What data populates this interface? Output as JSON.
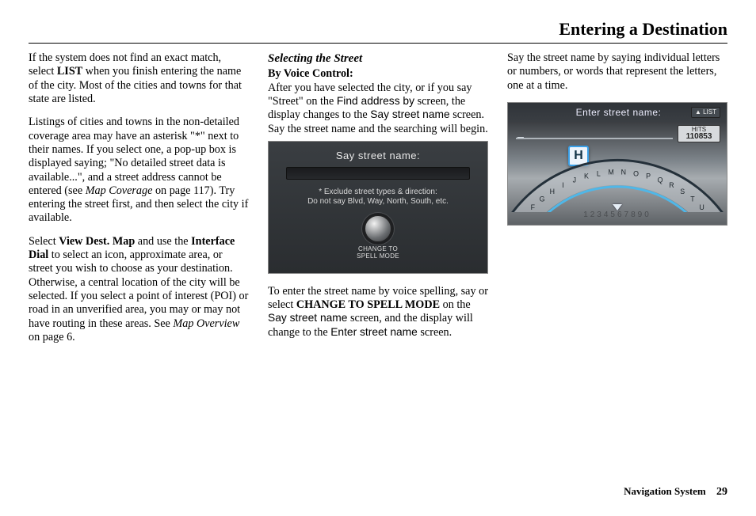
{
  "page": {
    "title": "Entering a Destination",
    "footer_label": "Navigation System",
    "footer_page": "29"
  },
  "col1": {
    "p1_a": "If the system does not find an exact match, select ",
    "p1_b": "LIST",
    "p1_c": " when you finish entering the name of the city. Most of the cities and towns for that state are listed.",
    "p2_a": "Listings of cities and towns in the non-detailed coverage area may have an asterisk \"*\" next to their names. If you select one, a pop-up box is displayed saying; \"No detailed street data is available...\", and a street address cannot be entered (see ",
    "p2_b": "Map Coverage",
    "p2_c": " on page 117). Try entering the street first, and then select the city if available.",
    "p3_a": "Select ",
    "p3_b": "View Dest. Map",
    "p3_c": " and use the ",
    "p3_d": "Interface Dial",
    "p3_e": " to select an icon, approximate area, or street you wish to choose as your destination. Otherwise, a central location of the city will be selected. If you select a point of interest (POI) or road in an unverified area, you may or may not have routing in these areas. See ",
    "p3_f": "Map Overview",
    "p3_g": " on page 6."
  },
  "col2": {
    "heading": "Selecting the Street",
    "subheading": "By Voice Control:",
    "p1_a": "After you have selected the city, or if you say \"Street\" on the ",
    "p1_b": "Find address by",
    "p1_c": " screen, the display changes to the ",
    "p1_d": "Say street name",
    "p1_e": " screen. Say the street name and the searching will begin.",
    "ss1": {
      "title": "Say street name:",
      "note1": "* Exclude street types & direction:",
      "note2": "Do not say Blvd, Way, North, South, etc.",
      "change": "CHANGE TO\nSPELL MODE"
    },
    "p2_a": "To enter the street name by voice spelling, say or select ",
    "p2_b": "CHANGE TO SPELL MODE",
    "p2_c": " on the ",
    "p2_d": "Say street name",
    "p2_e": " screen, and the display will change to the ",
    "p2_f": "Enter street name",
    "p2_g": " screen."
  },
  "col3": {
    "p1": "Say the street name by saying individual letters or numbers, or words that represent the letters, one at a time.",
    "ss2": {
      "title": "Enter street name:",
      "list_label": "▲ LIST",
      "entry": "_",
      "hits_label": "HITS",
      "hits_value": "110853",
      "highlighted_key": "H",
      "letters": "ABCDEFGHIJKLMNOPQRSTUVWXYZ",
      "digits": "1234567890",
      "arc_main_color": "#24303a",
      "arc_highlight_color": "#4fb7e8",
      "arc_face_color": "#c3c9ce"
    }
  }
}
